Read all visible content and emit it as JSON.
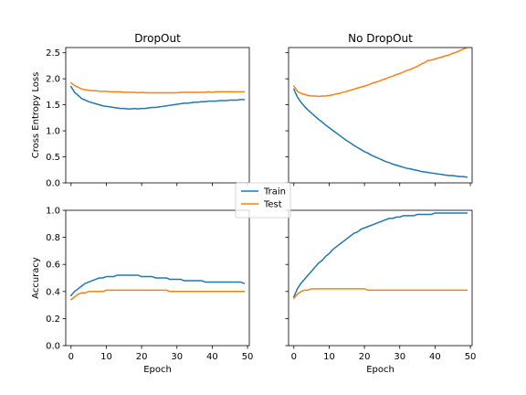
{
  "chart_data": [
    {
      "type": "line",
      "title": "DropOut",
      "xlabel": "",
      "ylabel": "Cross Entropy Loss",
      "xlim": [
        -1.5,
        50.5
      ],
      "ylim": [
        0.0,
        2.6
      ],
      "xticks": [
        0,
        10,
        20,
        30,
        40,
        50
      ],
      "xtick_labels": [
        "",
        "",
        "",
        "",
        "",
        ""
      ],
      "yticks": [
        0.0,
        0.5,
        1.0,
        1.5,
        2.0,
        2.5
      ],
      "ytick_labels": [
        "0.0",
        "0.5",
        "1.0",
        "1.5",
        "2.0",
        "2.5"
      ],
      "x": [
        0,
        1,
        2,
        3,
        4,
        5,
        6,
        7,
        8,
        9,
        10,
        11,
        12,
        13,
        14,
        15,
        16,
        17,
        18,
        19,
        20,
        21,
        22,
        23,
        24,
        25,
        26,
        27,
        28,
        29,
        30,
        31,
        32,
        33,
        34,
        35,
        36,
        37,
        38,
        39,
        40,
        41,
        42,
        43,
        44,
        45,
        46,
        47,
        48,
        49
      ],
      "series": [
        {
          "name": "Train",
          "color": "#1f77b4",
          "values": [
            1.85,
            1.74,
            1.68,
            1.62,
            1.59,
            1.56,
            1.54,
            1.52,
            1.5,
            1.48,
            1.47,
            1.46,
            1.45,
            1.44,
            1.43,
            1.43,
            1.42,
            1.42,
            1.43,
            1.42,
            1.43,
            1.43,
            1.44,
            1.45,
            1.45,
            1.46,
            1.47,
            1.48,
            1.49,
            1.5,
            1.51,
            1.52,
            1.53,
            1.53,
            1.54,
            1.55,
            1.55,
            1.56,
            1.56,
            1.57,
            1.57,
            1.57,
            1.58,
            1.58,
            1.58,
            1.59,
            1.59,
            1.59,
            1.6,
            1.6
          ]
        },
        {
          "name": "Test",
          "color": "#ff7f0e",
          "values": [
            1.92,
            1.87,
            1.84,
            1.8,
            1.79,
            1.78,
            1.77,
            1.77,
            1.76,
            1.76,
            1.76,
            1.75,
            1.75,
            1.75,
            1.75,
            1.74,
            1.74,
            1.74,
            1.74,
            1.73,
            1.74,
            1.73,
            1.73,
            1.73,
            1.73,
            1.73,
            1.73,
            1.73,
            1.73,
            1.73,
            1.73,
            1.74,
            1.74,
            1.74,
            1.74,
            1.74,
            1.74,
            1.74,
            1.74,
            1.75,
            1.74,
            1.75,
            1.75,
            1.75,
            1.75,
            1.75,
            1.75,
            1.75,
            1.75,
            1.75
          ]
        }
      ]
    },
    {
      "type": "line",
      "title": "No DropOut",
      "xlabel": "",
      "ylabel": "",
      "xlim": [
        -1.5,
        50.5
      ],
      "ylim": [
        0.0,
        2.6
      ],
      "xticks": [
        0,
        10,
        20,
        30,
        40,
        50
      ],
      "xtick_labels": [
        "",
        "",
        "",
        "",
        "",
        ""
      ],
      "yticks": [
        0.0,
        0.5,
        1.0,
        1.5,
        2.0,
        2.5
      ],
      "ytick_labels": [
        "",
        "",
        "",
        "",
        "",
        ""
      ],
      "x": [
        0,
        1,
        2,
        3,
        4,
        5,
        6,
        7,
        8,
        9,
        10,
        11,
        12,
        13,
        14,
        15,
        16,
        17,
        18,
        19,
        20,
        21,
        22,
        23,
        24,
        25,
        26,
        27,
        28,
        29,
        30,
        31,
        32,
        33,
        34,
        35,
        36,
        37,
        38,
        39,
        40,
        41,
        42,
        43,
        44,
        45,
        46,
        47,
        48,
        49
      ],
      "series": [
        {
          "name": "Train",
          "color": "#1f77b4",
          "values": [
            1.8,
            1.65,
            1.55,
            1.47,
            1.4,
            1.34,
            1.28,
            1.22,
            1.17,
            1.11,
            1.06,
            1.01,
            0.96,
            0.91,
            0.86,
            0.81,
            0.77,
            0.72,
            0.68,
            0.64,
            0.6,
            0.57,
            0.53,
            0.5,
            0.47,
            0.44,
            0.41,
            0.39,
            0.36,
            0.34,
            0.32,
            0.3,
            0.28,
            0.27,
            0.25,
            0.24,
            0.22,
            0.21,
            0.2,
            0.19,
            0.18,
            0.17,
            0.16,
            0.15,
            0.14,
            0.14,
            0.13,
            0.12,
            0.12,
            0.11
          ]
        },
        {
          "name": "Test",
          "color": "#ff7f0e",
          "values": [
            1.86,
            1.76,
            1.72,
            1.7,
            1.68,
            1.67,
            1.67,
            1.66,
            1.67,
            1.67,
            1.68,
            1.69,
            1.71,
            1.72,
            1.74,
            1.76,
            1.78,
            1.8,
            1.82,
            1.84,
            1.86,
            1.88,
            1.91,
            1.93,
            1.95,
            1.98,
            2.0,
            2.03,
            2.05,
            2.08,
            2.1,
            2.13,
            2.16,
            2.18,
            2.21,
            2.24,
            2.28,
            2.31,
            2.35,
            2.36,
            2.38,
            2.4,
            2.42,
            2.44,
            2.46,
            2.49,
            2.51,
            2.54,
            2.57,
            2.6
          ]
        }
      ]
    },
    {
      "type": "line",
      "title": "",
      "xlabel": "Epoch",
      "ylabel": "Accuracy",
      "xlim": [
        -1.5,
        50.5
      ],
      "ylim": [
        0.0,
        1.0
      ],
      "xticks": [
        0,
        10,
        20,
        30,
        40,
        50
      ],
      "xtick_labels": [
        "0",
        "10",
        "20",
        "30",
        "40",
        "50"
      ],
      "yticks": [
        0.0,
        0.2,
        0.4,
        0.6,
        0.8,
        1.0
      ],
      "ytick_labels": [
        "0.0",
        "0.2",
        "0.4",
        "0.6",
        "0.8",
        "1.0"
      ],
      "x": [
        0,
        1,
        2,
        3,
        4,
        5,
        6,
        7,
        8,
        9,
        10,
        11,
        12,
        13,
        14,
        15,
        16,
        17,
        18,
        19,
        20,
        21,
        22,
        23,
        24,
        25,
        26,
        27,
        28,
        29,
        30,
        31,
        32,
        33,
        34,
        35,
        36,
        37,
        38,
        39,
        40,
        41,
        42,
        43,
        44,
        45,
        46,
        47,
        48,
        49
      ],
      "series": [
        {
          "name": "Train",
          "color": "#1f77b4",
          "values": [
            0.37,
            0.4,
            0.42,
            0.44,
            0.46,
            0.47,
            0.48,
            0.49,
            0.5,
            0.5,
            0.51,
            0.51,
            0.51,
            0.52,
            0.52,
            0.52,
            0.52,
            0.52,
            0.52,
            0.52,
            0.51,
            0.51,
            0.51,
            0.51,
            0.5,
            0.5,
            0.5,
            0.5,
            0.49,
            0.49,
            0.49,
            0.49,
            0.48,
            0.48,
            0.48,
            0.48,
            0.48,
            0.48,
            0.47,
            0.47,
            0.47,
            0.47,
            0.47,
            0.47,
            0.47,
            0.47,
            0.47,
            0.47,
            0.47,
            0.46
          ]
        },
        {
          "name": "Test",
          "color": "#ff7f0e",
          "values": [
            0.34,
            0.36,
            0.38,
            0.39,
            0.39,
            0.4,
            0.4,
            0.4,
            0.4,
            0.4,
            0.41,
            0.41,
            0.41,
            0.41,
            0.41,
            0.41,
            0.41,
            0.41,
            0.41,
            0.41,
            0.41,
            0.41,
            0.41,
            0.41,
            0.41,
            0.41,
            0.41,
            0.41,
            0.4,
            0.4,
            0.4,
            0.4,
            0.4,
            0.4,
            0.4,
            0.4,
            0.4,
            0.4,
            0.4,
            0.4,
            0.4,
            0.4,
            0.4,
            0.4,
            0.4,
            0.4,
            0.4,
            0.4,
            0.4,
            0.4
          ]
        }
      ]
    },
    {
      "type": "line",
      "title": "",
      "xlabel": "Epoch",
      "ylabel": "",
      "xlim": [
        -1.5,
        50.5
      ],
      "ylim": [
        0.0,
        1.0
      ],
      "xticks": [
        0,
        10,
        20,
        30,
        40,
        50
      ],
      "xtick_labels": [
        "0",
        "10",
        "20",
        "30",
        "40",
        "50"
      ],
      "yticks": [
        0.0,
        0.2,
        0.4,
        0.6,
        0.8,
        1.0
      ],
      "ytick_labels": [
        "",
        "",
        "",
        "",
        "",
        ""
      ],
      "x": [
        0,
        1,
        2,
        3,
        4,
        5,
        6,
        7,
        8,
        9,
        10,
        11,
        12,
        13,
        14,
        15,
        16,
        17,
        18,
        19,
        20,
        21,
        22,
        23,
        24,
        25,
        26,
        27,
        28,
        29,
        30,
        31,
        32,
        33,
        34,
        35,
        36,
        37,
        38,
        39,
        40,
        41,
        42,
        43,
        44,
        45,
        46,
        47,
        48,
        49
      ],
      "series": [
        {
          "name": "Train",
          "color": "#1f77b4",
          "values": [
            0.36,
            0.42,
            0.46,
            0.49,
            0.52,
            0.55,
            0.58,
            0.61,
            0.63,
            0.66,
            0.68,
            0.71,
            0.73,
            0.75,
            0.77,
            0.79,
            0.81,
            0.83,
            0.84,
            0.86,
            0.87,
            0.88,
            0.89,
            0.9,
            0.91,
            0.92,
            0.93,
            0.94,
            0.94,
            0.95,
            0.95,
            0.96,
            0.96,
            0.96,
            0.96,
            0.97,
            0.97,
            0.97,
            0.97,
            0.97,
            0.98,
            0.98,
            0.98,
            0.98,
            0.98,
            0.98,
            0.98,
            0.98,
            0.98,
            0.98
          ]
        },
        {
          "name": "Test",
          "color": "#ff7f0e",
          "values": [
            0.35,
            0.38,
            0.4,
            0.41,
            0.41,
            0.42,
            0.42,
            0.42,
            0.42,
            0.42,
            0.42,
            0.42,
            0.42,
            0.42,
            0.42,
            0.42,
            0.42,
            0.42,
            0.42,
            0.42,
            0.42,
            0.41,
            0.41,
            0.41,
            0.41,
            0.41,
            0.41,
            0.41,
            0.41,
            0.41,
            0.41,
            0.41,
            0.41,
            0.41,
            0.41,
            0.41,
            0.41,
            0.41,
            0.41,
            0.41,
            0.41,
            0.41,
            0.41,
            0.41,
            0.41,
            0.41,
            0.41,
            0.41,
            0.41,
            0.41
          ]
        }
      ]
    }
  ],
  "legend": {
    "placement": "center",
    "entries": [
      {
        "label": "Train",
        "color": "#1f77b4"
      },
      {
        "label": "Test",
        "color": "#ff7f0e"
      }
    ]
  }
}
